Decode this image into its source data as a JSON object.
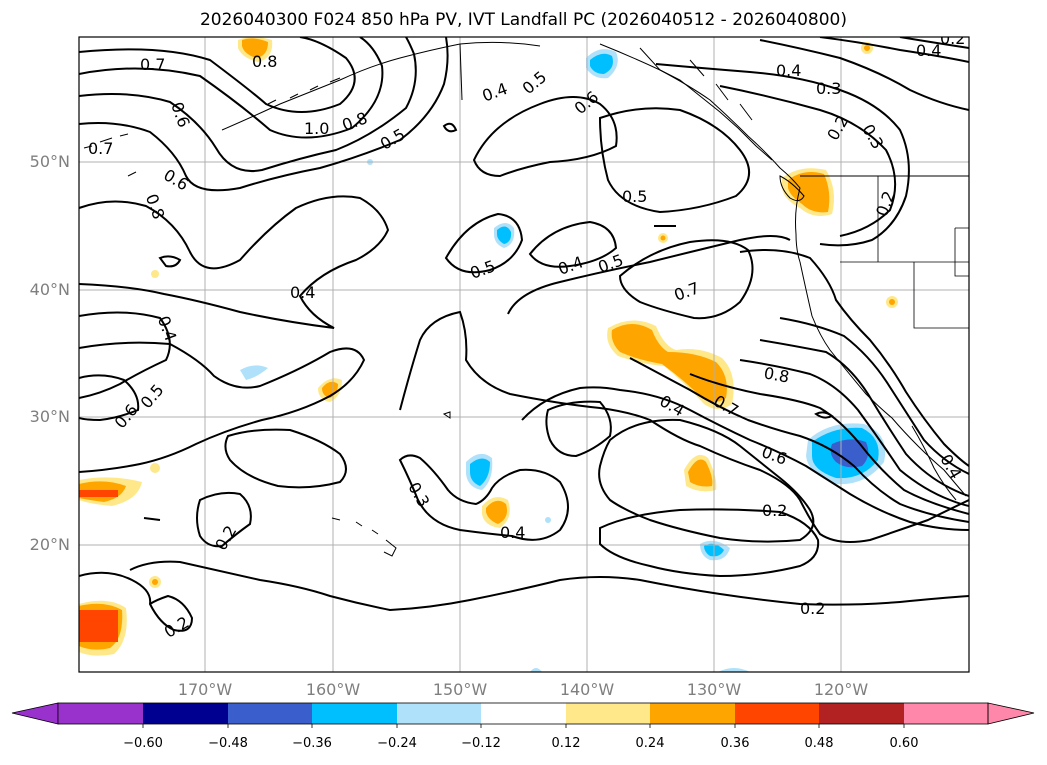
{
  "title": "2026040300 F024 850 hPa PV, IVT Landfall PC (2026040512 - 2026040800)",
  "lat_labels": [
    "50°N",
    "40°N",
    "30°N",
    "20°N"
  ],
  "lon_labels": [
    "170°W",
    "160°W",
    "150°W",
    "140°W",
    "130°W",
    "120°W"
  ],
  "contour_labels": [
    "0.8",
    "0.7",
    "0.6",
    "1.0",
    "0.8",
    "0.5",
    "0.7",
    "0.8",
    "0.6",
    "0.4",
    "0.5",
    "0.6",
    "0.4",
    "0.3",
    "0.2",
    "0.3",
    "0.5",
    "0.2",
    "0.5",
    "0.4",
    "0.5",
    "0.7",
    "0.4",
    "0.4",
    "0.5",
    "0.6",
    "0.8",
    "0.7",
    "0.4",
    "0.6",
    "0.3",
    "0.4",
    "0.2",
    "0.2",
    "0.2",
    "0.2",
    "0.2",
    "0.4",
    "0.4"
  ],
  "colorbar": {
    "ticks": [
      "−0.60",
      "−0.48",
      "−0.36",
      "−0.24",
      "−0.12",
      "0.12",
      "0.24",
      "0.36",
      "0.48",
      "0.60"
    ],
    "colors": [
      "#9932cc",
      "#000090",
      "#3a5fcd",
      "#00bfff",
      "#afe1fa",
      "#ffffff",
      "#ffe88a",
      "#ffa500",
      "#ff4500",
      "#b22222",
      "#ff88aa",
      "#ff88aa"
    ]
  },
  "shading": {
    "blue_light": "#afe1fa",
    "blue": "#00bfff",
    "blue_dark": "#3a5fcd",
    "yellow": "#ffe88a",
    "orange": "#ffa500",
    "red": "#ff4500"
  }
}
